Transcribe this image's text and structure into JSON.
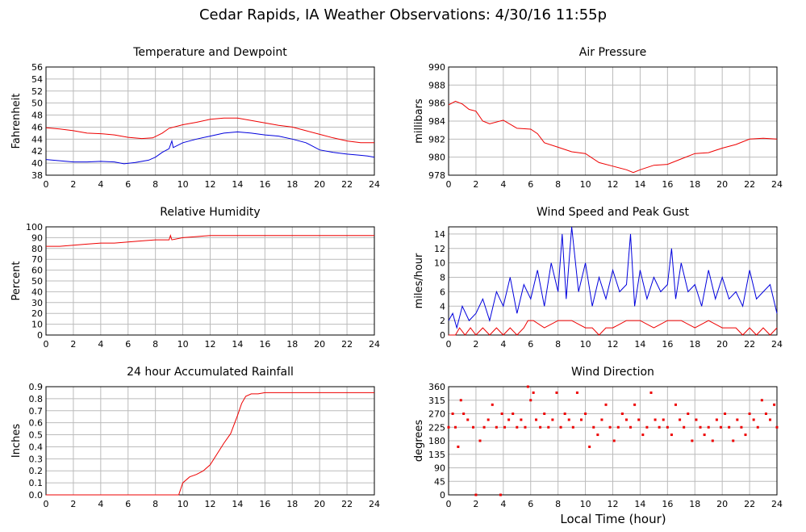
{
  "page": {
    "title": "Cedar Rapids, IA Weather Observations: 4/30/16 11:55p",
    "xaxis_label": "Local Time (hour)"
  },
  "colors": {
    "red": "#ee0000",
    "blue": "#0000dd",
    "grid": "#bbbbbb"
  },
  "chart_data": [
    {
      "id": "temp",
      "type": "line",
      "title": "Temperature and Dewpoint",
      "xlabel": "",
      "ylabel": "Fahrenheit",
      "xlim": [
        0,
        24
      ],
      "ylim": [
        38,
        56
      ],
      "xticks": [
        0,
        2,
        4,
        6,
        8,
        10,
        12,
        14,
        16,
        18,
        20,
        22,
        24
      ],
      "yticks": [
        38,
        40,
        42,
        44,
        46,
        48,
        50,
        52,
        54,
        56
      ],
      "grid": true,
      "series": [
        {
          "color": "red",
          "x": [
            0,
            1,
            2,
            3,
            4,
            5,
            6,
            7,
            7.8,
            8.5,
            9,
            10,
            11,
            12,
            13,
            14,
            15,
            16,
            17,
            18,
            19,
            20,
            21,
            22,
            23,
            24
          ],
          "y": [
            45.9,
            45.7,
            45.4,
            45.0,
            44.9,
            44.7,
            44.3,
            44.1,
            44.2,
            45.0,
            45.8,
            46.4,
            46.8,
            47.3,
            47.5,
            47.5,
            47.1,
            46.7,
            46.3,
            46.0,
            45.4,
            44.8,
            44.2,
            43.7,
            43.4,
            43.4
          ]
        },
        {
          "color": "blue",
          "x": [
            0,
            1,
            2,
            3,
            4,
            5,
            5.7,
            6.5,
            7.5,
            8,
            8.5,
            9,
            9.2,
            9.3,
            10,
            11,
            12,
            13,
            14,
            15,
            16,
            17,
            18,
            19,
            20,
            21,
            22,
            23,
            23.5,
            24
          ],
          "y": [
            40.6,
            40.4,
            40.2,
            40.2,
            40.3,
            40.2,
            39.9,
            40.1,
            40.5,
            41.0,
            41.8,
            42.4,
            43.7,
            42.6,
            43.4,
            44.0,
            44.5,
            45.0,
            45.2,
            45.0,
            44.7,
            44.5,
            44.0,
            43.4,
            42.2,
            41.8,
            41.5,
            41.3,
            41.2,
            41.0
          ]
        }
      ]
    },
    {
      "id": "pressure",
      "type": "line",
      "title": "Air Pressure",
      "xlabel": "",
      "ylabel": "millibars",
      "xlim": [
        0,
        24
      ],
      "ylim": [
        978,
        990
      ],
      "xticks": [
        0,
        2,
        4,
        6,
        8,
        10,
        12,
        14,
        16,
        18,
        20,
        22,
        24
      ],
      "yticks": [
        978,
        980,
        982,
        984,
        986,
        988,
        990
      ],
      "grid": true,
      "series": [
        {
          "color": "red",
          "x": [
            0,
            0.5,
            1,
            1.5,
            2,
            2.5,
            3,
            4,
            5,
            6,
            6.5,
            7,
            8,
            9,
            10,
            11,
            12,
            13,
            13.5,
            14,
            15,
            16,
            17,
            18,
            19,
            20,
            21,
            22,
            23,
            24
          ],
          "y": [
            985.8,
            986.2,
            985.9,
            985.3,
            985.1,
            984.0,
            983.7,
            984.1,
            983.2,
            983.1,
            982.6,
            981.6,
            981.1,
            980.6,
            980.4,
            979.4,
            979.0,
            978.6,
            978.3,
            978.6,
            979.1,
            979.2,
            979.8,
            980.4,
            980.5,
            981.0,
            981.4,
            982.0,
            982.1,
            982.0
          ]
        }
      ]
    },
    {
      "id": "humidity",
      "type": "line",
      "title": "Relative Humidity",
      "xlabel": "",
      "ylabel": "Percent",
      "xlim": [
        0,
        24
      ],
      "ylim": [
        0,
        100
      ],
      "xticks": [
        0,
        2,
        4,
        6,
        8,
        10,
        12,
        14,
        16,
        18,
        20,
        22,
        24
      ],
      "yticks": [
        0,
        10,
        20,
        30,
        40,
        50,
        60,
        70,
        80,
        90,
        100
      ],
      "grid": true,
      "series": [
        {
          "color": "red",
          "x": [
            0,
            1,
            2,
            3,
            4,
            5,
            6,
            7,
            8,
            9,
            9.1,
            9.2,
            10,
            11,
            12,
            13,
            14,
            15,
            16,
            17,
            18,
            19,
            20,
            21,
            22,
            23,
            24
          ],
          "y": [
            82,
            82,
            83,
            84,
            85,
            85,
            86,
            87,
            88,
            88,
            92,
            88,
            90,
            91,
            92,
            92,
            92,
            92,
            92,
            92,
            92,
            92,
            92,
            92,
            92,
            92,
            92
          ]
        }
      ]
    },
    {
      "id": "wind",
      "type": "line",
      "title": "Wind Speed and Peak Gust",
      "xlabel": "",
      "ylabel": "miles/hour",
      "xlim": [
        0,
        24
      ],
      "ylim": [
        0,
        15
      ],
      "xticks": [
        0,
        2,
        4,
        6,
        8,
        10,
        12,
        14,
        16,
        18,
        20,
        22,
        24
      ],
      "yticks": [
        0,
        2,
        4,
        6,
        8,
        10,
        12,
        14
      ],
      "grid": true,
      "series": [
        {
          "color": "blue",
          "x": [
            0,
            0.3,
            0.6,
            1,
            1.5,
            2,
            2.5,
            3,
            3.5,
            4,
            4.5,
            5,
            5.5,
            6,
            6.5,
            7,
            7.5,
            8,
            8.3,
            8.6,
            9,
            9.5,
            10,
            10.5,
            11,
            11.5,
            12,
            12.5,
            13,
            13.3,
            13.6,
            14,
            14.5,
            15,
            15.5,
            16,
            16.3,
            16.6,
            17,
            17.5,
            18,
            18.5,
            19,
            19.5,
            20,
            20.5,
            21,
            21.5,
            22,
            22.5,
            23,
            23.5,
            24
          ],
          "y": [
            2,
            3,
            1,
            4,
            2,
            3,
            5,
            2,
            6,
            4,
            8,
            3,
            7,
            5,
            9,
            4,
            10,
            6,
            14,
            5,
            15,
            6,
            10,
            4,
            8,
            5,
            9,
            6,
            7,
            14,
            4,
            9,
            5,
            8,
            6,
            7,
            12,
            5,
            10,
            6,
            7,
            4,
            9,
            5,
            8,
            5,
            6,
            4,
            9,
            5,
            6,
            7,
            3
          ]
        },
        {
          "color": "red",
          "x": [
            0,
            0.5,
            0.8,
            1.2,
            1.6,
            2,
            2.5,
            3,
            3.5,
            4,
            4.5,
            5,
            5.5,
            5.8,
            6.2,
            7,
            8,
            9,
            10,
            10.5,
            11,
            11.5,
            12,
            13,
            14,
            15,
            16,
            17,
            18,
            19,
            20,
            21,
            21.5,
            22,
            22.5,
            23,
            23.5,
            24
          ],
          "y": [
            0,
            0,
            1,
            0,
            1,
            0,
            1,
            0,
            1,
            0,
            1,
            0,
            1,
            2,
            2,
            1,
            2,
            2,
            1,
            1,
            0,
            1,
            1,
            2,
            2,
            1,
            2,
            2,
            1,
            2,
            1,
            1,
            0,
            1,
            0,
            1,
            0,
            1
          ]
        }
      ]
    },
    {
      "id": "rain",
      "type": "line",
      "title": "24 hour Accumulated Rainfall",
      "xlabel": "",
      "ylabel": "Inches",
      "xlim": [
        0,
        24
      ],
      "ylim": [
        0,
        0.9
      ],
      "xticks": [
        0,
        2,
        4,
        6,
        8,
        10,
        12,
        14,
        16,
        18,
        20,
        22,
        24
      ],
      "yticks": [
        0.0,
        0.1,
        0.2,
        0.3,
        0.4,
        0.5,
        0.6,
        0.7,
        0.8,
        0.9
      ],
      "grid": true,
      "series": [
        {
          "color": "red",
          "x": [
            0,
            9.7,
            10,
            10.5,
            11,
            11.5,
            12,
            12.5,
            13,
            13.5,
            14,
            14.3,
            14.6,
            15,
            15.5,
            16,
            17,
            18,
            24
          ],
          "y": [
            0,
            0,
            0.1,
            0.15,
            0.17,
            0.2,
            0.25,
            0.34,
            0.43,
            0.51,
            0.66,
            0.76,
            0.82,
            0.84,
            0.84,
            0.85,
            0.85,
            0.85,
            0.85
          ]
        }
      ]
    },
    {
      "id": "winddir",
      "type": "scatter",
      "title": "Wind Direction",
      "xlabel": "Local Time (hour)",
      "ylabel": "degrees",
      "xlim": [
        0,
        24
      ],
      "ylim": [
        0,
        360
      ],
      "xticks": [
        0,
        2,
        4,
        6,
        8,
        10,
        12,
        14,
        16,
        18,
        20,
        22,
        24
      ],
      "yticks": [
        0,
        45,
        90,
        135,
        180,
        225,
        270,
        315,
        360
      ],
      "grid": true,
      "series": [
        {
          "color": "red",
          "x": [
            0,
            0.3,
            0.5,
            0.7,
            0.9,
            1.1,
            1.4,
            1.8,
            2.0,
            2.3,
            2.6,
            2.9,
            3.2,
            3.5,
            3.8,
            3.9,
            4.1,
            4.4,
            4.7,
            5.0,
            5.3,
            5.6,
            5.8,
            6.0,
            6.2,
            6.4,
            6.7,
            7.0,
            7.3,
            7.6,
            7.9,
            8.2,
            8.5,
            8.8,
            9.1,
            9.4,
            9.7,
            10.0,
            10.3,
            10.6,
            10.9,
            11.2,
            11.5,
            11.8,
            12.1,
            12.4,
            12.7,
            13.0,
            13.3,
            13.6,
            13.9,
            14.2,
            14.5,
            14.8,
            15.1,
            15.4,
            15.7,
            16.0,
            16.3,
            16.6,
            16.9,
            17.2,
            17.5,
            17.8,
            18.1,
            18.4,
            18.7,
            19.0,
            19.3,
            19.6,
            19.9,
            20.2,
            20.5,
            20.8,
            21.1,
            21.4,
            21.7,
            22.0,
            22.3,
            22.6,
            22.9,
            23.2,
            23.5,
            23.8,
            24.0
          ],
          "y": [
            225,
            270,
            225,
            160,
            315,
            270,
            250,
            225,
            0,
            180,
            225,
            250,
            300,
            225,
            0,
            270,
            225,
            250,
            270,
            225,
            250,
            225,
            360,
            315,
            340,
            250,
            225,
            270,
            225,
            250,
            340,
            225,
            270,
            250,
            225,
            340,
            250,
            270,
            160,
            225,
            200,
            250,
            300,
            225,
            180,
            225,
            270,
            250,
            225,
            300,
            250,
            200,
            225,
            340,
            250,
            225,
            250,
            225,
            200,
            300,
            250,
            225,
            270,
            180,
            250,
            225,
            200,
            225,
            180,
            250,
            225,
            270,
            225,
            180,
            250,
            225,
            200,
            270,
            250,
            225,
            315,
            270,
            250,
            300,
            225
          ]
        }
      ]
    }
  ]
}
